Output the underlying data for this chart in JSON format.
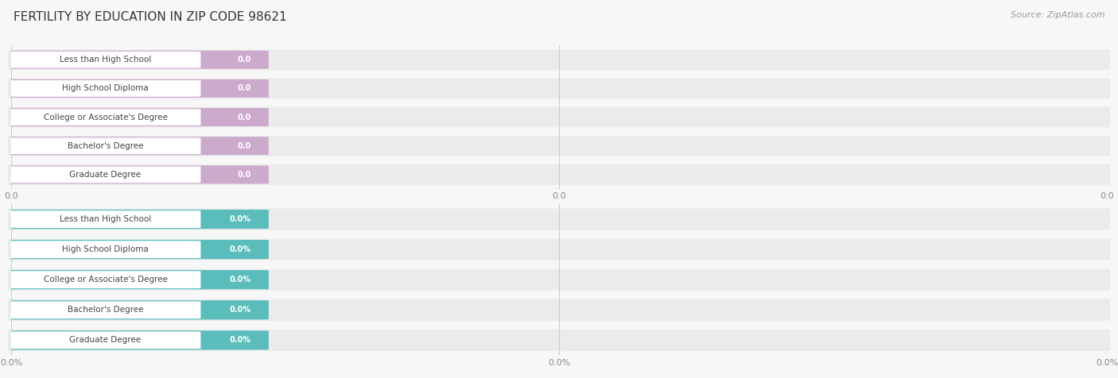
{
  "title": "FERTILITY BY EDUCATION IN ZIP CODE 98621",
  "source": "Source: ZipAtlas.com",
  "categories": [
    "Less than High School",
    "High School Diploma",
    "College or Associate's Degree",
    "Bachelor's Degree",
    "Graduate Degree"
  ],
  "values_top": [
    0.0,
    0.0,
    0.0,
    0.0,
    0.0
  ],
  "values_bottom": [
    0.0,
    0.0,
    0.0,
    0.0,
    0.0
  ],
  "bar_color_top": "#ccaacc",
  "bar_color_bottom": "#5bbcbc",
  "label_color": "#555555",
  "value_label_top": [
    "0.0",
    "0.0",
    "0.0",
    "0.0",
    "0.0"
  ],
  "value_label_bottom": [
    "0.0%",
    "0.0%",
    "0.0%",
    "0.0%",
    "0.0%"
  ],
  "bg_color": "#f7f7f7",
  "row_bg_color": "#e8e8e8",
  "xtick_labels_top": [
    "0.0",
    "0.0",
    "0.0"
  ],
  "xtick_labels_bottom": [
    "0.0%",
    "0.0%",
    "0.0%"
  ],
  "title_fontsize": 11,
  "source_fontsize": 8,
  "label_fontsize": 7.5,
  "value_fontsize": 7,
  "tick_fontsize": 8
}
